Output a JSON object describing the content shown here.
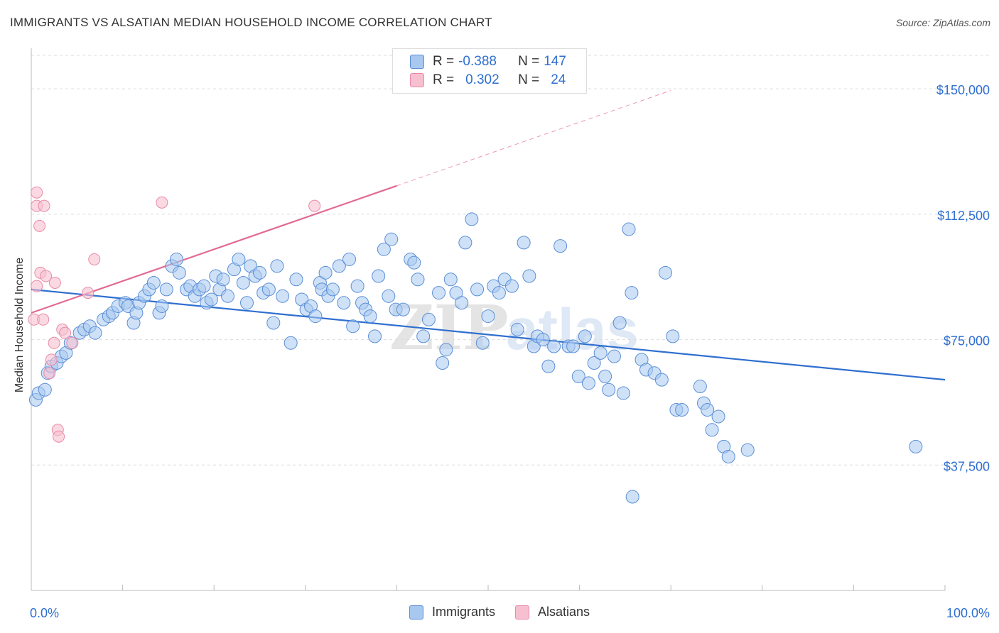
{
  "header": {
    "title": "IMMIGRANTS VS ALSATIAN MEDIAN HOUSEHOLD INCOME CORRELATION CHART",
    "source": "Source: ZipAtlas.com"
  },
  "legend": {
    "r_label": "R =",
    "n_label": "N =",
    "rows": [
      {
        "r": "-0.388",
        "n": "147"
      },
      {
        "r": "0.302",
        "n": "24"
      }
    ]
  },
  "bottom_legend": [
    "Immigrants",
    "Alsatians"
  ],
  "colors": {
    "immigrants_fill": "#a8c8f0",
    "immigrants_stroke": "#5b8fd6",
    "immigrants_line": "#2f6fd0",
    "alsatians_fill": "#f6c0d0",
    "alsatians_stroke": "#e98aa8",
    "alsatians_line": "#e26a92",
    "axis_text": "#2f6fd0"
  },
  "chart_data": {
    "type": "scatter",
    "title": "IMMIGRANTS VS ALSATIAN MEDIAN HOUSEHOLD INCOME CORRELATION CHART",
    "xlabel": "",
    "ylabel": "Median Household Income",
    "xlim": [
      0,
      100
    ],
    "ylim": [
      0,
      160000
    ],
    "x_tick_labels": [
      "0.0%",
      "100.0%"
    ],
    "y_ticks": [
      37500,
      75000,
      112500,
      150000
    ],
    "y_tick_labels": [
      "$37,500",
      "$75,000",
      "$112,500",
      "$150,000"
    ],
    "grid": "horizontal dashed",
    "legend_position": "top-center",
    "watermark": "ZIPatlas",
    "series": [
      {
        "name": "Immigrants",
        "r": -0.388,
        "n": 147,
        "trend": {
          "x": [
            0,
            100
          ],
          "y": [
            90000,
            63000
          ]
        },
        "points": [
          [
            0.5,
            57000
          ],
          [
            0.8,
            59000
          ],
          [
            1.5,
            60000
          ],
          [
            1.8,
            65000
          ],
          [
            2.2,
            67000
          ],
          [
            2.8,
            68000
          ],
          [
            3.3,
            70000
          ],
          [
            3.8,
            71000
          ],
          [
            4.3,
            74000
          ],
          [
            5.3,
            77000
          ],
          [
            5.8,
            78000
          ],
          [
            6.4,
            79000
          ],
          [
            7.0,
            77000
          ],
          [
            7.9,
            81000
          ],
          [
            8.5,
            82000
          ],
          [
            8.9,
            83000
          ],
          [
            9.5,
            85000
          ],
          [
            10.3,
            86000
          ],
          [
            10.6,
            85000
          ],
          [
            11.2,
            80000
          ],
          [
            11.5,
            83000
          ],
          [
            11.8,
            86000
          ],
          [
            12.4,
            88000
          ],
          [
            12.9,
            90000
          ],
          [
            13.4,
            92000
          ],
          [
            14.0,
            83000
          ],
          [
            14.3,
            85000
          ],
          [
            14.8,
            90000
          ],
          [
            15.4,
            97000
          ],
          [
            15.9,
            99000
          ],
          [
            16.2,
            95000
          ],
          [
            17.0,
            90000
          ],
          [
            17.4,
            91000
          ],
          [
            17.9,
            88000
          ],
          [
            18.4,
            90000
          ],
          [
            18.9,
            91000
          ],
          [
            19.2,
            86000
          ],
          [
            19.7,
            87000
          ],
          [
            20.2,
            94000
          ],
          [
            20.6,
            90000
          ],
          [
            21.0,
            93000
          ],
          [
            21.5,
            88000
          ],
          [
            22.2,
            96000
          ],
          [
            22.7,
            99000
          ],
          [
            23.2,
            92000
          ],
          [
            23.6,
            86000
          ],
          [
            24.0,
            97000
          ],
          [
            24.5,
            94000
          ],
          [
            25.0,
            95000
          ],
          [
            25.4,
            89000
          ],
          [
            26.0,
            90000
          ],
          [
            26.5,
            80000
          ],
          [
            26.9,
            97000
          ],
          [
            27.5,
            88000
          ],
          [
            28.4,
            74000
          ],
          [
            29.0,
            93000
          ],
          [
            29.6,
            87000
          ],
          [
            30.1,
            84000
          ],
          [
            30.6,
            85000
          ],
          [
            31.1,
            82000
          ],
          [
            31.6,
            92000
          ],
          [
            31.8,
            90000
          ],
          [
            32.2,
            95000
          ],
          [
            32.5,
            88000
          ],
          [
            33.0,
            90000
          ],
          [
            33.7,
            97000
          ],
          [
            34.2,
            86000
          ],
          [
            34.8,
            99000
          ],
          [
            35.2,
            79000
          ],
          [
            35.7,
            91000
          ],
          [
            36.2,
            86000
          ],
          [
            36.6,
            84000
          ],
          [
            37.1,
            82000
          ],
          [
            37.6,
            76000
          ],
          [
            38.0,
            94000
          ],
          [
            38.6,
            102000
          ],
          [
            39.1,
            88000
          ],
          [
            39.4,
            105000
          ],
          [
            39.9,
            84000
          ],
          [
            40.7,
            84000
          ],
          [
            41.5,
            99000
          ],
          [
            41.9,
            98000
          ],
          [
            42.3,
            93000
          ],
          [
            42.9,
            76000
          ],
          [
            43.5,
            81000
          ],
          [
            44.6,
            89000
          ],
          [
            45.0,
            68000
          ],
          [
            45.4,
            72000
          ],
          [
            45.9,
            93000
          ],
          [
            46.5,
            89000
          ],
          [
            47.1,
            86000
          ],
          [
            47.5,
            104000
          ],
          [
            48.2,
            111000
          ],
          [
            48.8,
            90000
          ],
          [
            49.4,
            74000
          ],
          [
            50.0,
            82000
          ],
          [
            50.6,
            91000
          ],
          [
            51.2,
            89000
          ],
          [
            51.8,
            93000
          ],
          [
            52.6,
            91000
          ],
          [
            53.2,
            78000
          ],
          [
            53.9,
            104000
          ],
          [
            54.5,
            94000
          ],
          [
            55.0,
            73000
          ],
          [
            55.4,
            76000
          ],
          [
            56.0,
            75000
          ],
          [
            56.6,
            67000
          ],
          [
            57.2,
            73000
          ],
          [
            57.9,
            103000
          ],
          [
            58.8,
            73000
          ],
          [
            59.3,
            73000
          ],
          [
            59.9,
            64000
          ],
          [
            60.6,
            76000
          ],
          [
            61.0,
            62000
          ],
          [
            61.6,
            68000
          ],
          [
            62.3,
            71000
          ],
          [
            62.8,
            64000
          ],
          [
            63.2,
            60000
          ],
          [
            63.8,
            70000
          ],
          [
            64.4,
            80000
          ],
          [
            64.8,
            59000
          ],
          [
            65.4,
            108000
          ],
          [
            65.7,
            89000
          ],
          [
            66.8,
            69000
          ],
          [
            67.3,
            66000
          ],
          [
            68.2,
            65000
          ],
          [
            69.0,
            63000
          ],
          [
            69.4,
            95000
          ],
          [
            70.2,
            76000
          ],
          [
            70.6,
            54000
          ],
          [
            71.2,
            54000
          ],
          [
            73.2,
            61000
          ],
          [
            73.6,
            56000
          ],
          [
            74.0,
            54000
          ],
          [
            74.5,
            48000
          ],
          [
            75.2,
            52000
          ],
          [
            75.8,
            43000
          ],
          [
            76.3,
            40000
          ],
          [
            78.4,
            42000
          ],
          [
            65.8,
            28000
          ],
          [
            96.8,
            43000
          ]
        ]
      },
      {
        "name": "Alsatians",
        "r": 0.302,
        "n": 24,
        "trend": {
          "x": [
            0,
            40
          ],
          "y": [
            83000,
            121000
          ]
        },
        "points": [
          [
            0.3,
            81000
          ],
          [
            0.6,
            91000
          ],
          [
            0.6,
            119000
          ],
          [
            0.6,
            115000
          ],
          [
            0.9,
            109000
          ],
          [
            1.0,
            95000
          ],
          [
            1.3,
            81000
          ],
          [
            1.4,
            115000
          ],
          [
            1.6,
            94000
          ],
          [
            2.0,
            65000
          ],
          [
            2.2,
            69000
          ],
          [
            2.5,
            74000
          ],
          [
            2.6,
            92000
          ],
          [
            2.9,
            48000
          ],
          [
            3.0,
            46000
          ],
          [
            3.4,
            78000
          ],
          [
            3.7,
            77000
          ],
          [
            4.5,
            74000
          ],
          [
            6.2,
            89000
          ],
          [
            6.9,
            99000
          ],
          [
            14.3,
            116000
          ],
          [
            31.0,
            115000
          ]
        ]
      }
    ]
  }
}
